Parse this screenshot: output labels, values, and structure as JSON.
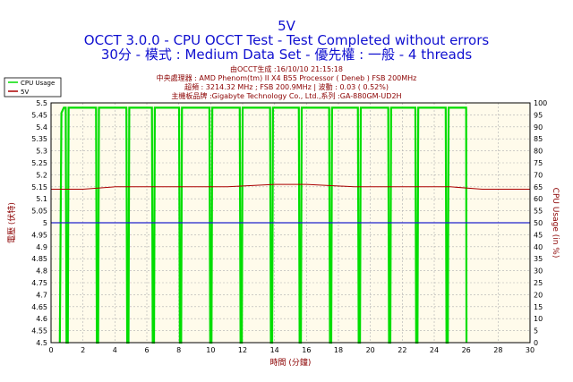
{
  "header": {
    "title": "5V",
    "line2": "OCCT 3.0.0 - CPU OCCT Test - Test Completed without errors",
    "line3": "30分 - 模式 : Medium Data Set - 優先權 : 一般 - 4 threads"
  },
  "info": {
    "generated": "由OCCT生成 :16/10/10 21:15:18",
    "cpu": "中央處理器 : AMD Phenom(tm) II X4 B55 Processor ( Deneb ) FSB 200MHz",
    "clock": "超頻 : 3214.32 MHz ; FSB 200.9MHz | 波動 : 0.03 ( 0.52%)",
    "board": "主機板品牌 :Gigabyte Technology Co., Ltd.,系列 :GA-880GM-UD2H"
  },
  "chart_data": {
    "type": "line",
    "title": "5V",
    "xlabel": "時間 (分鐘)",
    "ylabel_left": "電壓 (伏特)",
    "ylabel_right": "CPU Usage (in %)",
    "xlim": [
      0,
      30
    ],
    "ylim_left": [
      4.5,
      5.5
    ],
    "ylim_right": [
      0,
      100
    ],
    "x_ticks": [
      "0",
      "2",
      "4",
      "6",
      "8",
      "10",
      "12",
      "14",
      "16",
      "18",
      "20",
      "22",
      "24",
      "26",
      "28",
      "30"
    ],
    "y_ticks_left": [
      "5.5",
      "5.45",
      "5.4",
      "5.35",
      "5.3",
      "5.25",
      "5.2",
      "5.15",
      "5.1",
      "5.05",
      "5",
      "4.95",
      "4.9",
      "4.85",
      "4.8",
      "4.75",
      "4.7",
      "4.65",
      "4.6",
      "4.55",
      "4.5"
    ],
    "y_ticks_right": [
      "100",
      "95",
      "90",
      "85",
      "80",
      "75",
      "70",
      "65",
      "60",
      "55",
      "50",
      "45",
      "40",
      "35",
      "30",
      "25",
      "20",
      "15",
      "10",
      "5",
      "0"
    ],
    "grid": true,
    "legend_position": "top-left",
    "series": [
      {
        "name": "CPU Usage",
        "axis": "right",
        "color": "#00dd00",
        "baseline": 98,
        "drops": [
          1.0,
          2.9,
          4.8,
          6.4,
          8.1,
          10.0,
          11.9,
          13.8,
          15.6,
          17.5,
          19.3,
          21.2,
          22.9,
          24.8
        ],
        "end": 26.0
      },
      {
        "name": "5V",
        "axis": "left",
        "color": "#aa0000",
        "x": [
          0,
          2,
          4,
          5,
          7,
          9,
          11,
          14,
          16,
          19,
          21,
          23,
          25,
          27,
          30
        ],
        "values": [
          5.14,
          5.14,
          5.15,
          5.15,
          5.15,
          5.15,
          5.15,
          5.16,
          5.16,
          5.15,
          5.15,
          5.15,
          5.15,
          5.14,
          5.14
        ]
      },
      {
        "name": "",
        "axis": "left",
        "color": "#2222cc",
        "x": [
          0,
          30
        ],
        "values": [
          5.0,
          5.0
        ]
      }
    ]
  }
}
